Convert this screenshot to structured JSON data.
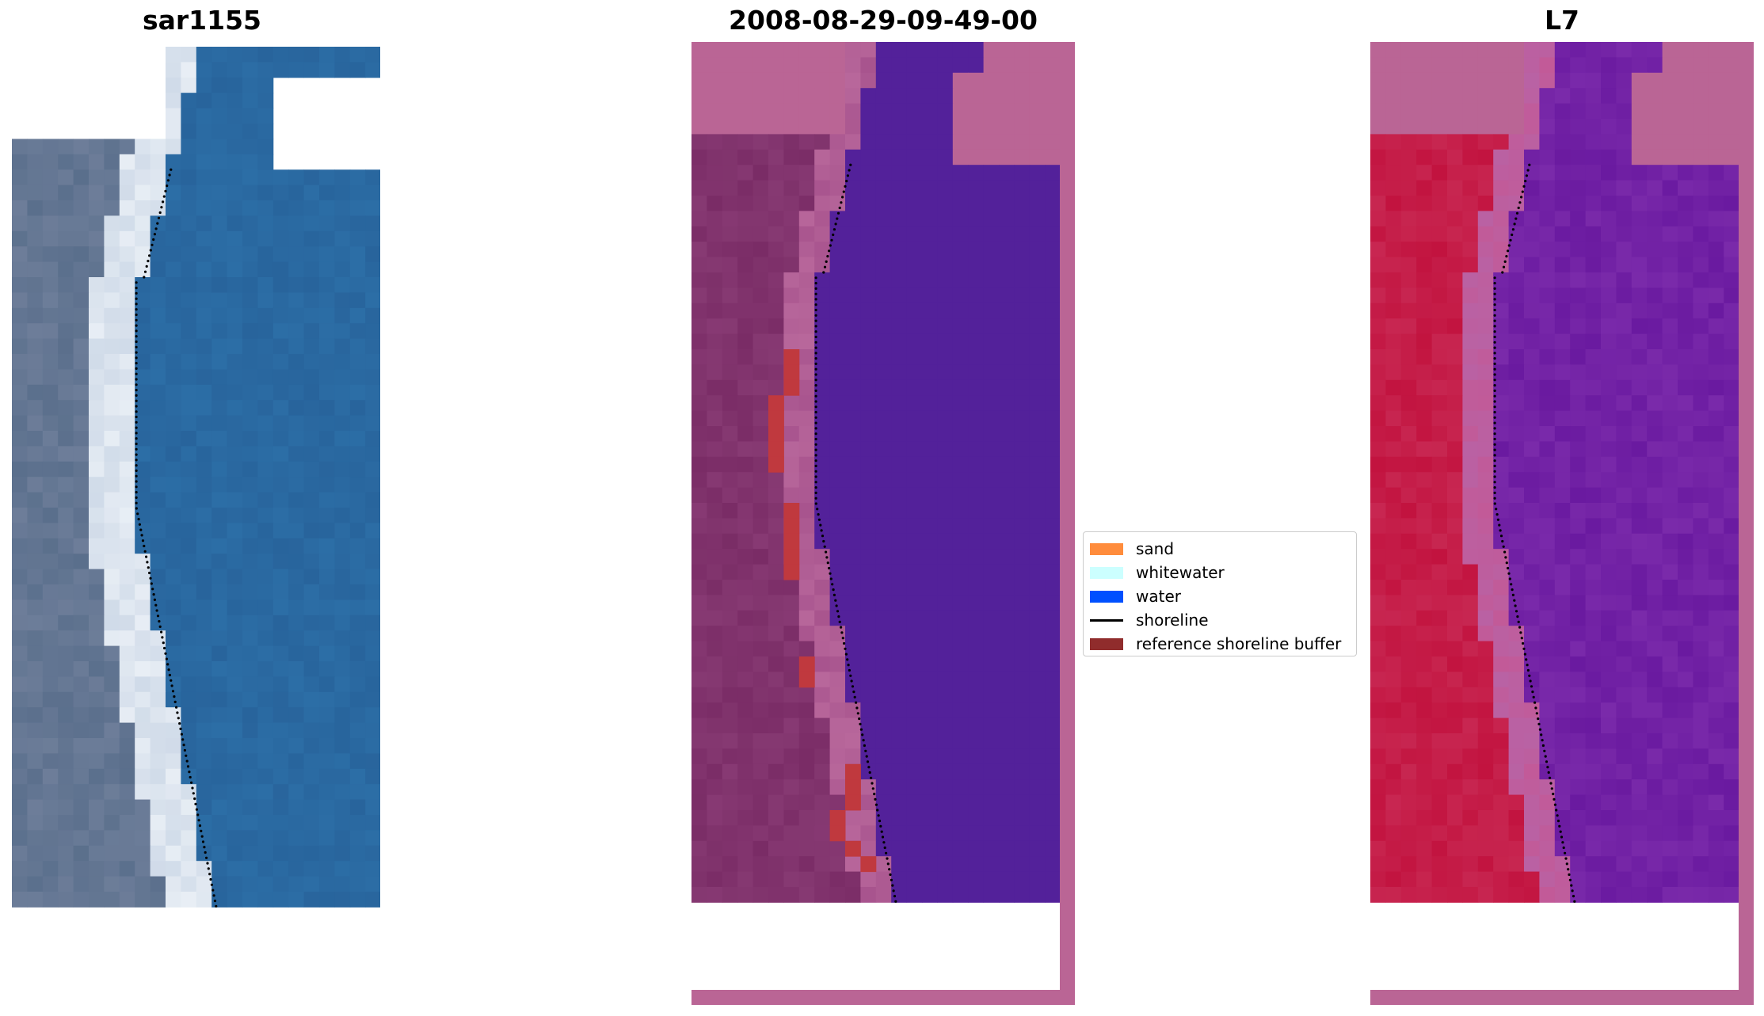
{
  "panels": [
    {
      "title": "sar1155",
      "kind": "rgb"
    },
    {
      "title": "2008-08-29-09-49-00",
      "kind": "classified"
    },
    {
      "title": "L7",
      "kind": "mndwi"
    }
  ],
  "legend": [
    {
      "label": "sand",
      "color": "#ff8c3c",
      "type": "patch"
    },
    {
      "label": "whitewater",
      "color": "#ccffff",
      "type": "patch"
    },
    {
      "label": "water",
      "color": "#0050ff",
      "type": "patch"
    },
    {
      "label": "shoreline",
      "color": "#000000",
      "type": "line"
    },
    {
      "label": "reference shoreline buffer",
      "color": "#902c2c",
      "type": "patch"
    }
  ],
  "colors": {
    "rgb_land": "#5a6f8c",
    "rgb_water": "#2c6ea6",
    "rgb_surf": "#e8eef5",
    "cls_nodata": "#ba6595",
    "cls_land": "#7a2c66",
    "cls_water": "#53219a",
    "cls_buffer": "#c0393e",
    "ndwi_land": "#c2133f",
    "ndwi_water": "#6a1aa0",
    "ndwi_nodata": "#ba6595"
  }
}
